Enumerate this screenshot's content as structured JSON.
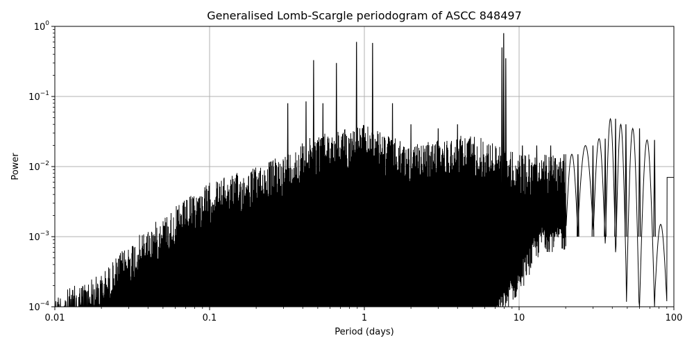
{
  "chart_data": {
    "type": "line",
    "title": "Generalised Lomb-Scargle periodogram of ASCC 848497",
    "xlabel": "Period (days)",
    "ylabel": "Power",
    "xscale": "log",
    "yscale": "log",
    "xlim": [
      0.01,
      100
    ],
    "ylim": [
      0.0001,
      1
    ],
    "grid": true,
    "x_ticks": [
      {
        "value": 0.01,
        "label": "0.01"
      },
      {
        "value": 0.1,
        "label": "0.1"
      },
      {
        "value": 1,
        "label": "1"
      },
      {
        "value": 10,
        "label": "10"
      },
      {
        "value": 100,
        "label": "100"
      }
    ],
    "y_ticks": [
      {
        "value": 0.0001,
        "base": "10",
        "exp": "−4"
      },
      {
        "value": 0.001,
        "base": "10",
        "exp": "−3"
      },
      {
        "value": 0.01,
        "base": "10",
        "exp": "−2"
      },
      {
        "value": 0.1,
        "base": "10",
        "exp": "−1"
      },
      {
        "value": 1,
        "base": "10",
        "exp": "0"
      }
    ],
    "series_color": "#000000",
    "notable_peaks": [
      {
        "period": 0.32,
        "power": 0.08
      },
      {
        "period": 0.42,
        "power": 0.085
      },
      {
        "period": 0.47,
        "power": 0.33
      },
      {
        "period": 0.54,
        "power": 0.08
      },
      {
        "period": 0.66,
        "power": 0.3
      },
      {
        "period": 0.89,
        "power": 0.6
      },
      {
        "period": 1.13,
        "power": 0.58
      },
      {
        "period": 1.52,
        "power": 0.08
      },
      {
        "period": 2.0,
        "power": 0.04
      },
      {
        "period": 3.0,
        "power": 0.035
      },
      {
        "period": 4.0,
        "power": 0.04
      },
      {
        "period": 7.75,
        "power": 0.5
      },
      {
        "period": 7.95,
        "power": 0.8
      },
      {
        "period": 8.2,
        "power": 0.35
      },
      {
        "period": 10.5,
        "power": 0.02
      },
      {
        "period": 13.0,
        "power": 0.02
      },
      {
        "period": 16.0,
        "power": 0.02
      },
      {
        "period": 19.5,
        "power": 0.015
      },
      {
        "period": 24.0,
        "power": 0.015
      },
      {
        "period": 30.0,
        "power": 0.02
      },
      {
        "period": 36.0,
        "power": 0.025
      },
      {
        "period": 42.0,
        "power": 0.048
      },
      {
        "period": 49.0,
        "power": 0.04
      },
      {
        "period": 60.0,
        "power": 0.035
      },
      {
        "period": 75.0,
        "power": 0.024
      }
    ],
    "envelope": [
      {
        "period": 0.01,
        "upper": 0.00015,
        "base": 8e-05
      },
      {
        "period": 0.02,
        "upper": 0.0003,
        "base": 9e-05
      },
      {
        "period": 0.03,
        "upper": 0.0008,
        "base": 0.0001
      },
      {
        "period": 0.05,
        "upper": 0.002,
        "base": 0.0001
      },
      {
        "period": 0.1,
        "upper": 0.006,
        "base": 0.0001
      },
      {
        "period": 0.2,
        "upper": 0.01,
        "base": 0.0001
      },
      {
        "period": 0.3,
        "upper": 0.015,
        "base": 0.0001
      },
      {
        "period": 0.5,
        "upper": 0.03,
        "base": 8e-05
      },
      {
        "period": 1.0,
        "upper": 0.04,
        "base": 5e-05
      },
      {
        "period": 2.0,
        "upper": 0.02,
        "base": 5e-05
      },
      {
        "period": 5.0,
        "upper": 0.03,
        "base": 5e-05
      },
      {
        "period": 10.0,
        "upper": 0.015,
        "base": 0.0005
      },
      {
        "period": 14.0,
        "upper": 0.015,
        "base": 0.002
      },
      {
        "period": 20.0,
        "upper": 0.015,
        "base": 0.002
      }
    ]
  }
}
